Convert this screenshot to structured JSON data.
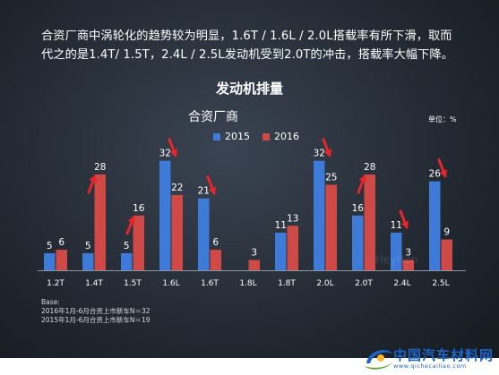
{
  "intro": {
    "line1": "合资厂商中涡轮化的趋势较为明显，1.6T / 1.6L / 2.0L搭载率有所下滑，取而",
    "line2": "代之的是1.4T/ 1.5T，2.4L / 2.5L发动机受到2.0T的冲击，搭载率大幅下降。"
  },
  "colors": {
    "bar_2015": "#3e7bd8",
    "bar_2016": "#cf4a47",
    "arrow": "#e8252a",
    "label": "#ffffff",
    "tick": "#ffffff"
  },
  "chart_data": {
    "type": "bar",
    "title": "发动机排量",
    "subtitle": "合资厂商",
    "unit_note": "单位：%",
    "categories": [
      "1.2T",
      "1.4T",
      "1.5T",
      "1.6L",
      "1.6T",
      "1.8L",
      "1.8T",
      "2.0L",
      "2.0T",
      "2.4L",
      "2.5L"
    ],
    "series": [
      {
        "name": "2015",
        "values": [
          5,
          5,
          5,
          32,
          21,
          null,
          11,
          32,
          16,
          11,
          26
        ]
      },
      {
        "name": "2016",
        "values": [
          6,
          28,
          16,
          22,
          6,
          3,
          13,
          25,
          28,
          3,
          9
        ]
      }
    ],
    "ylim": [
      0,
      34
    ],
    "trend_arrows": [
      {
        "category": "1.4T",
        "direction": "up"
      },
      {
        "category": "1.5T",
        "direction": "up"
      },
      {
        "category": "1.6L",
        "direction": "down"
      },
      {
        "category": "1.6T",
        "direction": "down"
      },
      {
        "category": "2.0L",
        "direction": "down"
      },
      {
        "category": "2.0T",
        "direction": "up"
      },
      {
        "category": "2.4L",
        "direction": "down"
      },
      {
        "category": "2.5L",
        "direction": "down"
      }
    ],
    "legend_position": "top-center",
    "grid": false
  },
  "base": {
    "heading": "Base:",
    "line1": "2016年1月-6月合资上市新车N＝32",
    "line2": "2015年1月-6月合资上市新车N＝19"
  },
  "watermark": "HeyHoo",
  "logo": {
    "name": "中国汽车材料网",
    "url": "www.qichecailiao.com"
  }
}
